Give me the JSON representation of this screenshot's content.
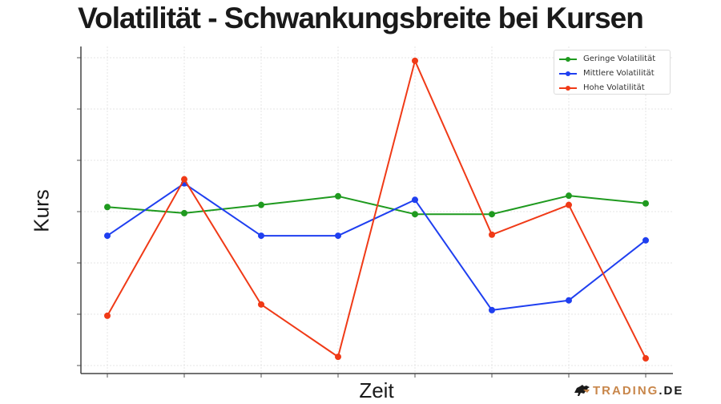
{
  "title": "Volatilität - Schwankungsbreite bei Kursen",
  "logo": {
    "brand": "TRADING",
    "suffix": ".DE",
    "icon": "bull-icon"
  },
  "chart_data": {
    "type": "line",
    "title": "Volatilität - Schwankungsbreite bei Kursen",
    "xlabel": "Zeit",
    "ylabel": "Kurs",
    "x": [
      1,
      2,
      3,
      4,
      5,
      6,
      7,
      8
    ],
    "x_tick_labels_visible": false,
    "y_tick_labels_visible": false,
    "ylim": [
      -0.2,
      6.2
    ],
    "grid": true,
    "legend_position": "upper right",
    "series": [
      {
        "name": "Geringe Volatilität",
        "color": "#1f9a1f",
        "values": [
          3.09,
          2.97,
          3.13,
          3.3,
          2.95,
          2.95,
          3.31,
          3.16
        ]
      },
      {
        "name": "Mittlere Volatilität",
        "color": "#1f3ff0",
        "values": [
          2.53,
          3.55,
          2.53,
          2.53,
          3.23,
          1.08,
          1.27,
          2.44
        ]
      },
      {
        "name": "Hohe Volatilität",
        "color": "#f03a17",
        "values": [
          0.97,
          3.63,
          1.19,
          0.17,
          5.94,
          2.55,
          3.13,
          0.14
        ]
      }
    ]
  }
}
